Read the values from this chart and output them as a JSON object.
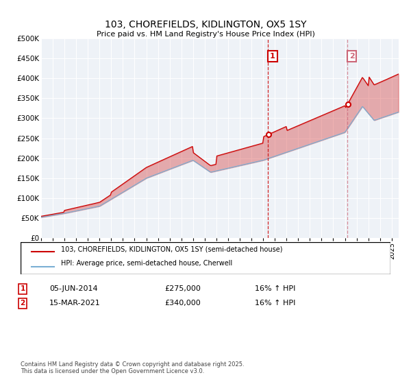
{
  "title": "103, CHOREFIELDS, KIDLINGTON, OX5 1SY",
  "subtitle": "Price paid vs. HM Land Registry's House Price Index (HPI)",
  "background_color": "#ffffff",
  "plot_bg_color": "#eef2f7",
  "red_line_color": "#cc0000",
  "blue_line_color": "#7aafd4",
  "legend1": "103, CHOREFIELDS, KIDLINGTON, OX5 1SY (semi-detached house)",
  "legend2": "HPI: Average price, semi-detached house, Cherwell",
  "annotation1_date": "05-JUN-2014",
  "annotation1_price": "£275,000",
  "annotation1_hpi": "16% ↑ HPI",
  "annotation1_year": 2014.43,
  "annotation2_date": "15-MAR-2021",
  "annotation2_price": "£340,000",
  "annotation2_hpi": "16% ↑ HPI",
  "annotation2_year": 2021.21,
  "footnote": "Contains HM Land Registry data © Crown copyright and database right 2025.\nThis data is licensed under the Open Government Licence v3.0.",
  "ylim_min": 0,
  "ylim_max": 500000,
  "year_start": 1995,
  "year_end": 2025
}
